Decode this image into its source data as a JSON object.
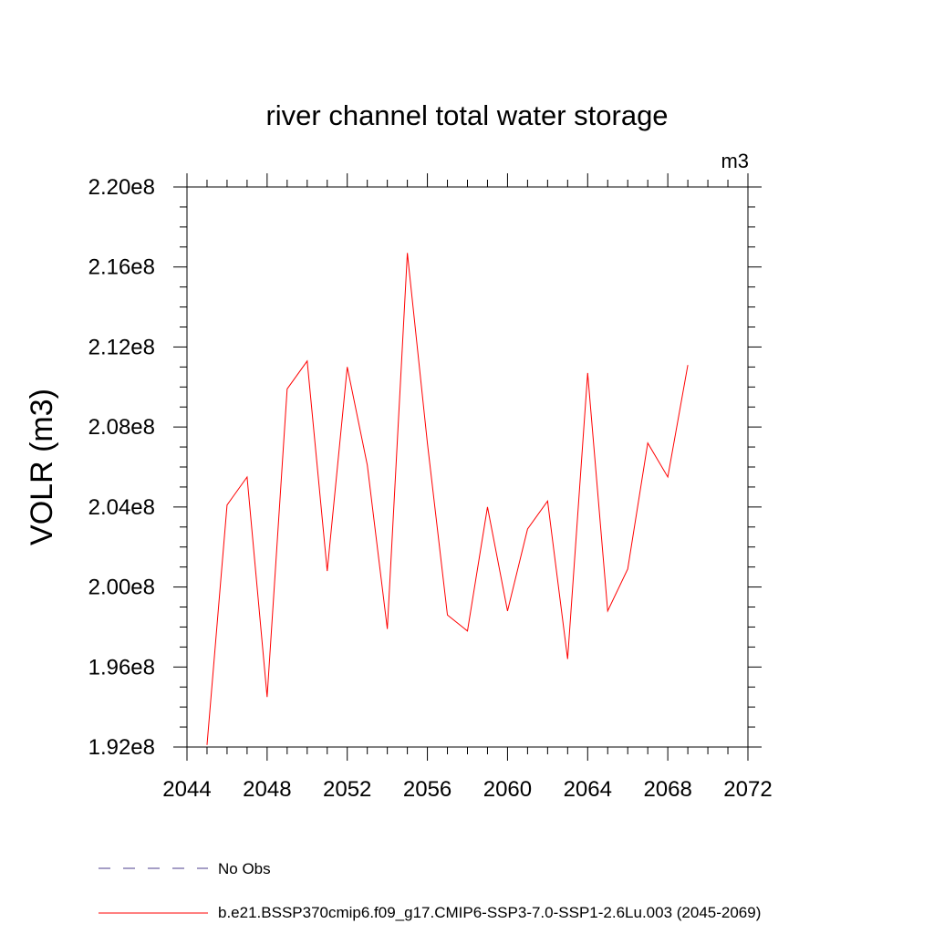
{
  "chart_data": {
    "type": "line",
    "title": "river channel total water storage",
    "units_label": "m3",
    "ylabel": "VOLR  (m3)",
    "xlabel": "",
    "xlim": [
      2044,
      2072
    ],
    "ylim": [
      192000000.0,
      220000000.0
    ],
    "x_ticks": [
      2044,
      2048,
      2052,
      2056,
      2060,
      2064,
      2068,
      2072
    ],
    "x_tick_labels": [
      "2044",
      "2048",
      "2052",
      "2056",
      "2060",
      "2064",
      "2068",
      "2072"
    ],
    "y_ticks": [
      192000000.0,
      196000000.0,
      200000000.0,
      204000000.0,
      208000000.0,
      212000000.0,
      216000000.0,
      220000000.0
    ],
    "y_tick_labels": [
      "1.92e8",
      "1.96e8",
      "2.00e8",
      "2.04e8",
      "2.08e8",
      "2.12e8",
      "2.16e8",
      "2.20e8"
    ],
    "grid": false,
    "legend_position": "bottom",
    "series": [
      {
        "name": "b.e21.BSSP370cmip6.f09_g17.CMIP6-SSP3-7.0-SSP1-2.6Lu.003 (2045-2069)",
        "color": "#ff0000",
        "x": [
          2045,
          2046,
          2047,
          2048,
          2049,
          2050,
          2051,
          2052,
          2053,
          2054,
          2055,
          2056,
          2057,
          2058,
          2059,
          2060,
          2061,
          2062,
          2063,
          2064,
          2065,
          2066,
          2067,
          2068,
          2069
        ],
        "values": [
          192100000.0,
          204100000.0,
          205500000.0,
          194500000.0,
          209900000.0,
          211300000.0,
          200800000.0,
          211000000.0,
          206100000.0,
          197900000.0,
          216700000.0,
          207200000.0,
          198600000.0,
          197800000.0,
          204000000.0,
          198800000.0,
          202900000.0,
          204300000.0,
          196400000.0,
          210700000.0,
          198800000.0,
          200900000.0,
          207200000.0,
          205500000.0,
          211100000.0
        ]
      }
    ],
    "legend": [
      {
        "label": "No Obs",
        "color": "#4b3c8c",
        "style": "dashed"
      },
      {
        "label": "b.e21.BSSP370cmip6.f09_g17.CMIP6-SSP3-7.0-SSP1-2.6Lu.003 (2045-2069)",
        "color": "#ff0000",
        "style": "solid"
      }
    ]
  }
}
